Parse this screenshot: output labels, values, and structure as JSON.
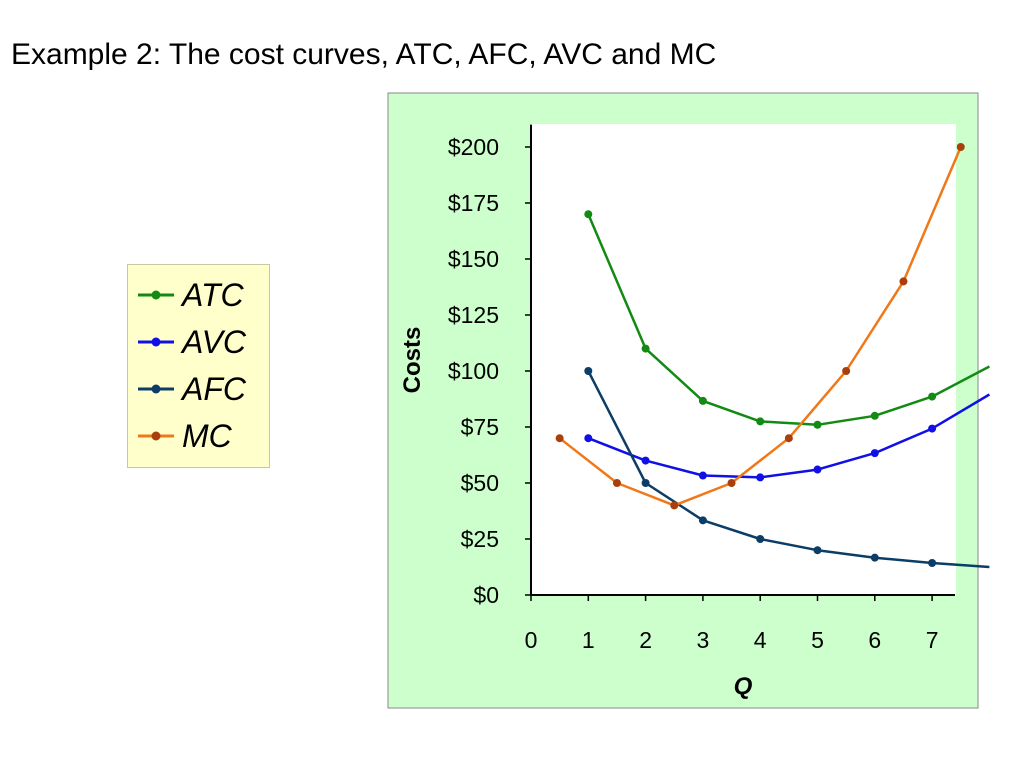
{
  "slide_title": "Example 2:  The cost curves, ATC, AFC, AVC and MC",
  "colors": {
    "panel_background": "#ccffcc",
    "plot_background": "#ffffff",
    "legend_background": "#ffffcc",
    "ATC": "#138a13",
    "AVC": "#1010e6",
    "AFC": "#0b3d66",
    "MC": "#f07818",
    "MC_markers": "#a8400c"
  },
  "chart_data": {
    "type": "line",
    "xlabel": "Q",
    "ylabel": "Costs",
    "xlim": [
      0,
      7.4
    ],
    "ylim": [
      0,
      210
    ],
    "x_ticks": [
      "0",
      "1",
      "2",
      "3",
      "4",
      "5",
      "6",
      "7"
    ],
    "y_ticks": [
      "$0",
      "$25",
      "$50",
      "$75",
      "$100",
      "$125",
      "$150",
      "$175",
      "$200"
    ],
    "legend_position": "left",
    "grid": false,
    "series": [
      {
        "name": "ATC",
        "x": [
          1,
          2,
          3,
          4,
          5,
          6,
          7,
          8
        ],
        "y": [
          170,
          110,
          86.67,
          77.5,
          76,
          80,
          88.57,
          102
        ]
      },
      {
        "name": "AVC",
        "x": [
          1,
          2,
          3,
          4,
          5,
          6,
          7,
          8
        ],
        "y": [
          70,
          60,
          53.33,
          52.5,
          56,
          63.33,
          74.29,
          89.5
        ]
      },
      {
        "name": "AFC",
        "x": [
          1,
          2,
          3,
          4,
          5,
          6,
          7,
          8
        ],
        "y": [
          100,
          50,
          33.33,
          25,
          20,
          16.67,
          14.29,
          12.5
        ]
      },
      {
        "name": "MC",
        "x": [
          0.5,
          1.5,
          2.5,
          3.5,
          4.5,
          5.5,
          6.5,
          7.5
        ],
        "y": [
          70,
          50,
          40,
          50,
          70,
          100,
          140,
          200
        ]
      }
    ]
  }
}
